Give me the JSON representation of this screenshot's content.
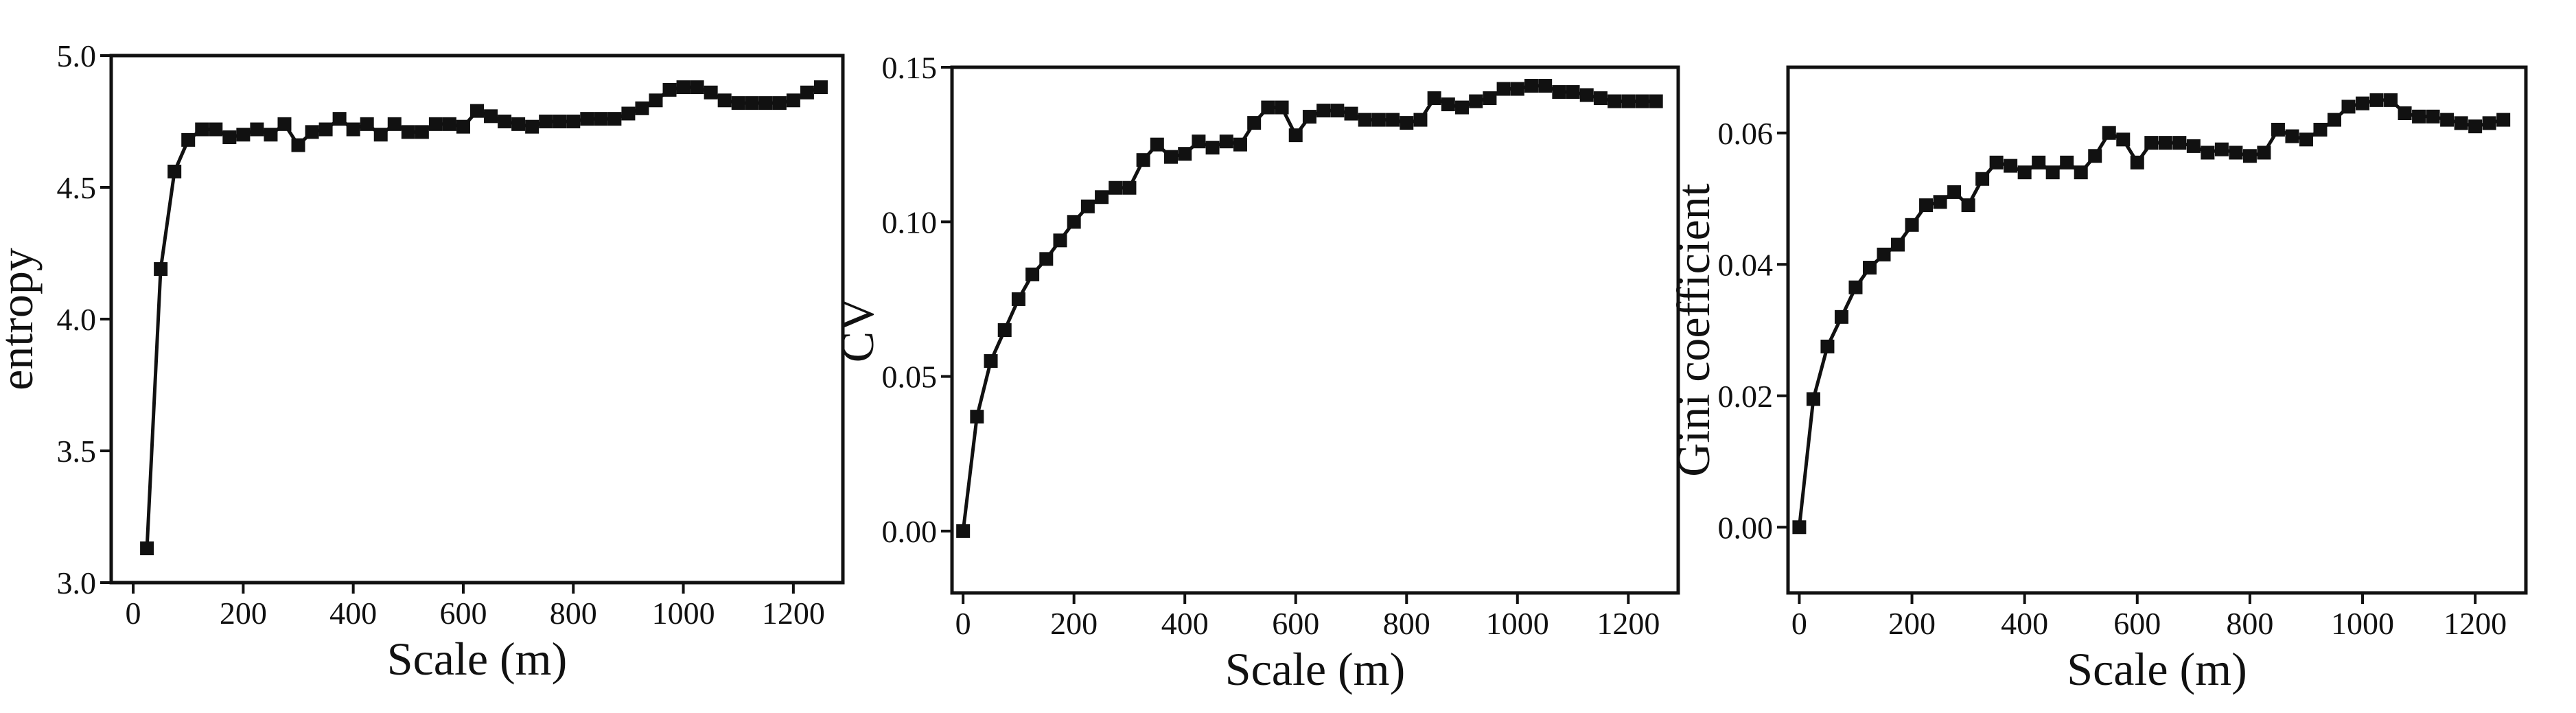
{
  "figure": {
    "panel_count": 3
  },
  "chart_data": [
    {
      "type": "line",
      "title": "",
      "xlabel": "Scale (m)",
      "ylabel": "entropy",
      "xlim": [
        -40,
        1290
      ],
      "ylim": [
        3.0,
        5.0
      ],
      "xticks": [
        0,
        200,
        400,
        600,
        800,
        1000,
        1200
      ],
      "yticks": [
        3.0,
        3.5,
        4.0,
        4.5,
        5.0
      ],
      "ytick_labels": [
        "3.0",
        "3.5",
        "4.0",
        "4.5",
        "5.0"
      ],
      "marker": "square",
      "color": "#111111",
      "grid": false,
      "legend": false,
      "series": [
        {
          "x": [
            25,
            50,
            75,
            100,
            125,
            150,
            175,
            200,
            225,
            250,
            275,
            300,
            325,
            350,
            375,
            400,
            425,
            450,
            475,
            500,
            525,
            550,
            575,
            600,
            625,
            650,
            675,
            700,
            725,
            750,
            775,
            800,
            825,
            850,
            875,
            900,
            925,
            950,
            975,
            1000,
            1025,
            1050,
            1075,
            1100,
            1125,
            1150,
            1175,
            1200,
            1225,
            1250
          ],
          "y": [
            3.13,
            4.19,
            4.56,
            4.68,
            4.72,
            4.72,
            4.69,
            4.7,
            4.72,
            4.7,
            4.74,
            4.66,
            4.71,
            4.72,
            4.76,
            4.72,
            4.74,
            4.7,
            4.74,
            4.71,
            4.71,
            4.74,
            4.74,
            4.73,
            4.79,
            4.77,
            4.75,
            4.74,
            4.73,
            4.75,
            4.75,
            4.75,
            4.76,
            4.76,
            4.76,
            4.78,
            4.8,
            4.83,
            4.87,
            4.88,
            4.88,
            4.86,
            4.83,
            4.82,
            4.82,
            4.82,
            4.82,
            4.83,
            4.86,
            4.88
          ]
        }
      ]
    },
    {
      "type": "line",
      "title": "",
      "xlabel": "Scale (m)",
      "ylabel": "CV",
      "xlim": [
        -20,
        1290
      ],
      "ylim": [
        -0.02,
        0.15
      ],
      "xticks": [
        0,
        200,
        400,
        600,
        800,
        1000,
        1200
      ],
      "yticks": [
        0.0,
        0.05,
        0.1,
        0.15
      ],
      "ytick_labels": [
        "0.00",
        "0.05",
        "0.10",
        "0.15"
      ],
      "marker": "square",
      "color": "#111111",
      "grid": false,
      "legend": false,
      "series": [
        {
          "x": [
            0,
            25,
            50,
            75,
            100,
            125,
            150,
            175,
            200,
            225,
            250,
            275,
            300,
            325,
            350,
            375,
            400,
            425,
            450,
            475,
            500,
            525,
            550,
            575,
            600,
            625,
            650,
            675,
            700,
            725,
            750,
            775,
            800,
            825,
            850,
            875,
            900,
            925,
            950,
            975,
            1000,
            1025,
            1050,
            1075,
            1100,
            1125,
            1150,
            1175,
            1200,
            1225,
            1250
          ],
          "y": [
            0.0,
            0.037,
            0.055,
            0.065,
            0.075,
            0.083,
            0.088,
            0.094,
            0.1,
            0.105,
            0.108,
            0.111,
            0.111,
            0.12,
            0.125,
            0.121,
            0.122,
            0.126,
            0.124,
            0.126,
            0.125,
            0.132,
            0.137,
            0.137,
            0.128,
            0.134,
            0.136,
            0.136,
            0.135,
            0.133,
            0.133,
            0.133,
            0.132,
            0.133,
            0.14,
            0.138,
            0.137,
            0.139,
            0.14,
            0.143,
            0.143,
            0.144,
            0.144,
            0.142,
            0.142,
            0.141,
            0.14,
            0.139,
            0.139,
            0.139,
            0.139
          ]
        }
      ]
    },
    {
      "type": "line",
      "title": "",
      "xlabel": "Scale (m)",
      "ylabel": "Gini coefficient",
      "xlim": [
        -20,
        1290
      ],
      "ylim": [
        -0.01,
        0.07
      ],
      "xticks": [
        0,
        200,
        400,
        600,
        800,
        1000,
        1200
      ],
      "yticks": [
        0.0,
        0.02,
        0.04,
        0.06
      ],
      "ytick_labels": [
        "0.00",
        "0.02",
        "0.04",
        "0.06"
      ],
      "marker": "square",
      "color": "#111111",
      "grid": false,
      "legend": false,
      "series": [
        {
          "x": [
            0,
            25,
            50,
            75,
            100,
            125,
            150,
            175,
            200,
            225,
            250,
            275,
            300,
            325,
            350,
            375,
            400,
            425,
            450,
            475,
            500,
            525,
            550,
            575,
            600,
            625,
            650,
            675,
            700,
            725,
            750,
            775,
            800,
            825,
            850,
            875,
            900,
            925,
            950,
            975,
            1000,
            1025,
            1050,
            1075,
            1100,
            1125,
            1150,
            1175,
            1200,
            1225,
            1250
          ],
          "y": [
            0.0,
            0.0195,
            0.0275,
            0.032,
            0.0365,
            0.0395,
            0.0415,
            0.043,
            0.046,
            0.049,
            0.0495,
            0.051,
            0.049,
            0.053,
            0.0555,
            0.055,
            0.054,
            0.0555,
            0.054,
            0.0555,
            0.054,
            0.0565,
            0.06,
            0.059,
            0.0555,
            0.0585,
            0.0585,
            0.0585,
            0.058,
            0.057,
            0.0575,
            0.057,
            0.0565,
            0.057,
            0.0605,
            0.0595,
            0.059,
            0.0605,
            0.062,
            0.064,
            0.0645,
            0.065,
            0.065,
            0.063,
            0.0625,
            0.0625,
            0.062,
            0.0615,
            0.061,
            0.0615,
            0.062
          ]
        }
      ]
    }
  ]
}
